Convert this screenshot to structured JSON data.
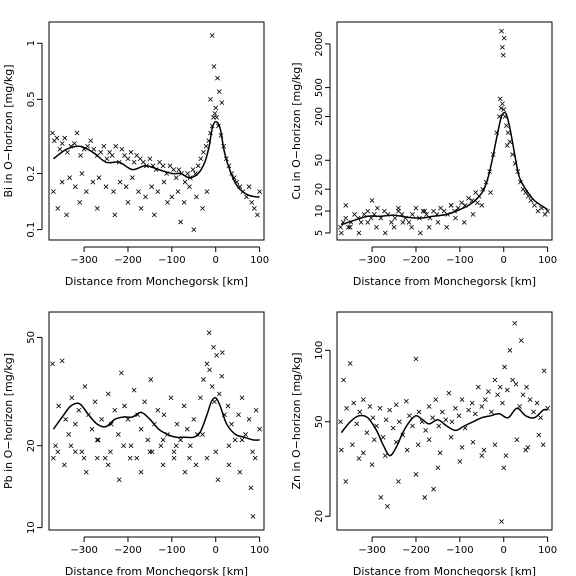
{
  "chart_data": [
    {
      "type": "scatter",
      "xlabel": "Distance from Monchegorsk [km]",
      "ylabel": "Bi in O−horizon [mg/kg]",
      "x_ticks": [
        -300,
        -200,
        -100,
        0,
        100
      ],
      "x_tick_labels": [
        "−300",
        "−200",
        "−100",
        "0",
        "100"
      ],
      "xlim": [
        -380,
        110
      ],
      "y_scale": "log",
      "ylim": [
        0.088,
        1.3
      ],
      "y_ticks": [
        0.1,
        0.2,
        0.5,
        1
      ],
      "y_tick_labels": [
        "0.1",
        "0.2",
        "0.5",
        "1"
      ],
      "grid": false,
      "legend": "none",
      "smooth": {
        "x": [
          -370,
          -340,
          -310,
          -280,
          -250,
          -220,
          -190,
          -160,
          -130,
          -100,
          -80,
          -60,
          -40,
          -25,
          -15,
          -8,
          0,
          10,
          20,
          35,
          50,
          70,
          90,
          100
        ],
        "y": [
          0.24,
          0.27,
          0.28,
          0.26,
          0.23,
          0.23,
          0.21,
          0.22,
          0.21,
          0.2,
          0.2,
          0.19,
          0.2,
          0.23,
          0.28,
          0.35,
          0.38,
          0.35,
          0.26,
          0.2,
          0.17,
          0.155,
          0.15,
          0.15
        ]
      },
      "points": {
        "x": [
          -372,
          -368,
          -362,
          -355,
          -350,
          -344,
          -338,
          -330,
          -322,
          -316,
          -308,
          -300,
          -292,
          -285,
          -278,
          -270,
          -262,
          -255,
          -248,
          -242,
          -236,
          -228,
          -220,
          -214,
          -208,
          -200,
          -193,
          -186,
          -180,
          -172,
          -165,
          -158,
          -150,
          -143,
          -136,
          -128,
          -120,
          -112,
          -104,
          -96,
          -90,
          -84,
          -78,
          -70,
          -64,
          -58,
          -52,
          -46,
          -40,
          -34,
          -28,
          -22,
          -16,
          -12,
          -8,
          -5,
          -2,
          0,
          2,
          6,
          12,
          18,
          24,
          -370,
          -350,
          -333,
          -320,
          -305,
          -295,
          -280,
          -266,
          -250,
          -233,
          -218,
          -204,
          -190,
          -176,
          -160,
          -146,
          -132,
          -118,
          -100,
          -86,
          -72,
          -60,
          -44,
          -30,
          -20,
          30,
          36,
          42,
          48,
          55,
          62,
          70,
          76,
          82,
          88,
          95,
          100,
          -8,
          -4,
          4,
          8,
          -12,
          14,
          -360,
          -340,
          -310,
          -270,
          -230,
          -200,
          -170,
          -140,
          -110,
          -80,
          -50
        ],
        "y": [
          0.33,
          0.3,
          0.31,
          0.27,
          0.29,
          0.31,
          0.26,
          0.28,
          0.29,
          0.33,
          0.25,
          0.27,
          0.28,
          0.3,
          0.27,
          0.25,
          0.26,
          0.28,
          0.24,
          0.26,
          0.25,
          0.28,
          0.23,
          0.27,
          0.25,
          0.24,
          0.26,
          0.23,
          0.25,
          0.24,
          0.23,
          0.22,
          0.24,
          0.22,
          0.21,
          0.23,
          0.22,
          0.2,
          0.22,
          0.21,
          0.19,
          0.21,
          0.2,
          0.18,
          0.2,
          0.19,
          0.21,
          0.2,
          0.22,
          0.24,
          0.26,
          0.28,
          0.3,
          0.33,
          0.36,
          0.4,
          0.42,
          0.45,
          0.4,
          0.36,
          0.32,
          0.28,
          0.24,
          0.16,
          0.18,
          0.19,
          0.17,
          0.2,
          0.16,
          0.18,
          0.19,
          0.17,
          0.16,
          0.18,
          0.17,
          0.19,
          0.16,
          0.15,
          0.17,
          0.16,
          0.18,
          0.15,
          0.16,
          0.14,
          0.17,
          0.15,
          0.13,
          0.16,
          0.22,
          0.2,
          0.19,
          0.18,
          0.17,
          0.16,
          0.15,
          0.17,
          0.14,
          0.13,
          0.12,
          0.16,
          1.1,
          0.75,
          0.65,
          0.55,
          0.5,
          0.48,
          0.13,
          0.12,
          0.14,
          0.13,
          0.12,
          0.14,
          0.13,
          0.12,
          0.14,
          0.11,
          0.1
        ]
      }
    },
    {
      "type": "scatter",
      "xlabel": "Distance from Monchegorsk [km]",
      "ylabel": "Cu in O−horizon [mg/kg]",
      "x_ticks": [
        -300,
        -200,
        -100,
        0,
        100
      ],
      "x_tick_labels": [
        "−300",
        "−200",
        "−100",
        "0",
        "100"
      ],
      "xlim": [
        -380,
        110
      ],
      "y_scale": "log",
      "ylim": [
        4,
        4000
      ],
      "y_ticks": [
        5,
        10,
        20,
        50,
        200,
        500,
        2000
      ],
      "y_tick_labels": [
        "5",
        "10",
        "20",
        "50",
        "200",
        "500",
        "2000"
      ],
      "grid": false,
      "legend": "none",
      "smooth": {
        "x": [
          -370,
          -340,
          -310,
          -280,
          -250,
          -220,
          -190,
          -160,
          -130,
          -100,
          -80,
          -60,
          -45,
          -35,
          -25,
          -15,
          -5,
          5,
          15,
          25,
          35,
          50,
          70,
          90,
          100
        ],
        "y": [
          6.5,
          7.5,
          8.5,
          8.5,
          8.8,
          8.2,
          8.0,
          8.5,
          9.0,
          10.5,
          12,
          15,
          20,
          30,
          55,
          110,
          200,
          220,
          130,
          60,
          30,
          20,
          14,
          11.5,
          10.5
        ]
      },
      "points": {
        "x": [
          -372,
          -366,
          -360,
          -354,
          -348,
          -340,
          -332,
          -325,
          -318,
          -310,
          -302,
          -295,
          -288,
          -280,
          -272,
          -264,
          -256,
          -248,
          -240,
          -232,
          -224,
          -216,
          -208,
          -200,
          -192,
          -184,
          -176,
          -168,
          -160,
          -152,
          -144,
          -136,
          -128,
          -120,
          -112,
          -104,
          -96,
          -88,
          -80,
          -72,
          -64,
          -56,
          -48,
          -40,
          -32,
          -24,
          -16,
          -10,
          -6,
          -3,
          0,
          3,
          6,
          10,
          14,
          20,
          26,
          32,
          38,
          44,
          50,
          56,
          62,
          70,
          78,
          86,
          94,
          100,
          -5,
          -3,
          -1,
          1,
          -8,
          8,
          -370,
          -350,
          -330,
          -310,
          -290,
          -270,
          -250,
          -230,
          -210,
          -190,
          -170,
          -150,
          -130,
          -110,
          -90,
          -70,
          -50,
          -30,
          -360,
          -300,
          -240,
          -180,
          -120,
          -60
        ],
        "y": [
          6,
          7,
          8,
          6,
          7,
          9,
          8,
          7,
          9,
          10,
          8,
          9,
          11,
          8,
          10,
          9,
          7,
          8,
          10,
          9,
          8,
          7,
          9,
          11,
          8,
          10,
          9,
          8,
          10,
          9,
          11,
          10,
          9,
          12,
          10,
          11,
          13,
          12,
          15,
          14,
          18,
          16,
          20,
          25,
          35,
          60,
          120,
          200,
          260,
          300,
          250,
          200,
          150,
          120,
          90,
          60,
          45,
          35,
          25,
          20,
          18,
          16,
          14,
          12,
          10,
          11,
          9,
          10,
          3000,
          1800,
          1400,
          2400,
          350,
          80,
          5,
          6,
          5,
          7,
          6,
          5,
          6,
          7,
          6,
          5,
          6,
          7,
          6,
          8,
          7,
          9,
          12,
          18,
          12,
          14,
          11,
          10,
          12,
          13
        ]
      }
    },
    {
      "type": "scatter",
      "xlabel": "Distance from Monchegorsk [km]",
      "ylabel": "Pb in O−horizon [mg/kg]",
      "x_ticks": [
        -300,
        -200,
        -100,
        0,
        100
      ],
      "x_tick_labels": [
        "−300",
        "−200",
        "−100",
        "0",
        "100"
      ],
      "xlim": [
        -380,
        110
      ],
      "y_scale": "log",
      "ylim": [
        9.8,
        62
      ],
      "y_ticks": [
        10,
        20,
        50
      ],
      "y_tick_labels": [
        "10",
        "20",
        "50"
      ],
      "grid": false,
      "legend": "none",
      "smooth": {
        "x": [
          -370,
          -350,
          -330,
          -310,
          -290,
          -270,
          -250,
          -230,
          -210,
          -190,
          -170,
          -150,
          -130,
          -110,
          -90,
          -70,
          -50,
          -35,
          -20,
          -10,
          0,
          10,
          25,
          45,
          65,
          85,
          100
        ],
        "y": [
          23,
          25.5,
          28,
          28.5,
          26,
          24,
          23.5,
          25,
          25.5,
          25.5,
          26.5,
          25,
          23,
          22,
          21.5,
          21.5,
          21.5,
          22.5,
          26,
          29,
          30,
          28,
          24,
          22,
          21.5,
          21,
          21
        ]
      },
      "points": {
        "x": [
          -372,
          -365,
          -358,
          -350,
          -342,
          -335,
          -328,
          -320,
          -312,
          -305,
          -298,
          -290,
          -282,
          -275,
          -268,
          -260,
          -252,
          -245,
          -238,
          -230,
          -222,
          -215,
          -208,
          -200,
          -193,
          -186,
          -178,
          -170,
          -162,
          -155,
          -148,
          -140,
          -132,
          -125,
          -118,
          -110,
          -102,
          -95,
          -88,
          -80,
          -72,
          -65,
          -58,
          -50,
          -42,
          -35,
          -28,
          -20,
          -14,
          -8,
          -3,
          2,
          8,
          14,
          20,
          28,
          36,
          44,
          52,
          60,
          68,
          76,
          84,
          92,
          100,
          -370,
          -345,
          -320,
          -295,
          -270,
          -245,
          -220,
          -195,
          -170,
          -145,
          -120,
          -95,
          -70,
          -45,
          -20,
          5,
          30,
          55,
          80,
          -360,
          -330,
          -300,
          -270,
          -240,
          -210,
          -180,
          -150,
          -120,
          -90,
          -60,
          -30,
          0,
          30,
          60,
          90,
          -15,
          -5,
          15,
          85
        ],
        "y": [
          40,
          20,
          28,
          41,
          25,
          22,
          30,
          24,
          27,
          19,
          33,
          26,
          23,
          29,
          21,
          25,
          18,
          31,
          24,
          27,
          22,
          37,
          28,
          25,
          20,
          32,
          26,
          23,
          29,
          21,
          35,
          24,
          27,
          20,
          26,
          22,
          30,
          19,
          24,
          21,
          28,
          23,
          20,
          25,
          22,
          30,
          35,
          40,
          38,
          33,
          29,
          43,
          31,
          36,
          26,
          28,
          24,
          21,
          26,
          30,
          22,
          25,
          19,
          27,
          23,
          18,
          17,
          19,
          16,
          18,
          17,
          15,
          18,
          16,
          19,
          17,
          18,
          16,
          17,
          18,
          15,
          17,
          16,
          14,
          19,
          20,
          18,
          21,
          19,
          20,
          18,
          19,
          21,
          20,
          18,
          22,
          19,
          20,
          21,
          18,
          52,
          46,
          44,
          11
        ]
      }
    },
    {
      "type": "scatter",
      "xlabel": "Distance from Monchegorsk [km]",
      "ylabel": "Zn in O−horizon [mg/kg]",
      "x_ticks": [
        -300,
        -200,
        -100,
        0,
        100
      ],
      "x_tick_labels": [
        "−300",
        "−200",
        "−100",
        "0",
        "100"
      ],
      "xlim": [
        -380,
        110
      ],
      "y_scale": "log",
      "ylim": [
        17.5,
        145
      ],
      "y_ticks": [
        20,
        50,
        100
      ],
      "y_tick_labels": [
        "20",
        "50",
        "100"
      ],
      "grid": false,
      "legend": "none",
      "smooth": {
        "x": [
          -370,
          -350,
          -330,
          -310,
          -290,
          -275,
          -260,
          -245,
          -230,
          -215,
          -200,
          -185,
          -170,
          -150,
          -130,
          -110,
          -90,
          -70,
          -50,
          -30,
          -10,
          10,
          30,
          50,
          70,
          90,
          100
        ],
        "y": [
          45,
          50,
          53,
          52,
          46,
          40,
          36,
          39,
          45,
          50,
          53,
          51,
          49,
          51,
          48,
          46,
          48,
          50,
          52,
          53,
          54,
          52,
          57,
          53,
          52,
          56,
          56
        ]
      },
      "points": {
        "x": [
          -372,
          -365,
          -358,
          -350,
          -342,
          -335,
          -328,
          -320,
          -312,
          -305,
          -298,
          -290,
          -282,
          -275,
          -268,
          -260,
          -252,
          -245,
          -238,
          -230,
          -222,
          -215,
          -208,
          -200,
          -193,
          -186,
          -178,
          -170,
          -162,
          -155,
          -148,
          -140,
          -132,
          -125,
          -118,
          -110,
          -102,
          -95,
          -88,
          -80,
          -72,
          -65,
          -58,
          -50,
          -42,
          -35,
          -28,
          -20,
          -14,
          -8,
          -3,
          2,
          8,
          14,
          20,
          28,
          36,
          44,
          52,
          60,
          68,
          76,
          84,
          92,
          100,
          -370,
          -345,
          -320,
          -295,
          -270,
          -245,
          -220,
          -195,
          -170,
          -145,
          -120,
          -95,
          -70,
          -45,
          -20,
          5,
          30,
          55,
          80,
          -280,
          -265,
          -180,
          -160,
          -5,
          25,
          40,
          -360,
          -330,
          -300,
          -240,
          -200,
          -150,
          -100,
          -50,
          0,
          50,
          90
        ],
        "y": [
          50,
          75,
          57,
          88,
          60,
          49,
          55,
          62,
          45,
          58,
          52,
          48,
          57,
          43,
          51,
          56,
          47,
          59,
          50,
          44,
          61,
          53,
          48,
          92,
          55,
          50,
          46,
          58,
          52,
          62,
          48,
          55,
          51,
          66,
          50,
          57,
          53,
          62,
          47,
          56,
          60,
          54,
          70,
          58,
          62,
          67,
          55,
          75,
          65,
          70,
          60,
          85,
          68,
          100,
          75,
          72,
          58,
          65,
          70,
          62,
          55,
          60,
          52,
          82,
          57,
          38,
          40,
          37,
          42,
          36,
          41,
          38,
          40,
          42,
          37,
          43,
          39,
          41,
          38,
          40,
          36,
          42,
          39,
          44,
          24,
          22,
          24,
          26,
          19,
          130,
          110,
          28,
          35,
          33,
          28,
          30,
          32,
          34,
          36,
          32,
          38,
          40
        ]
      }
    }
  ]
}
